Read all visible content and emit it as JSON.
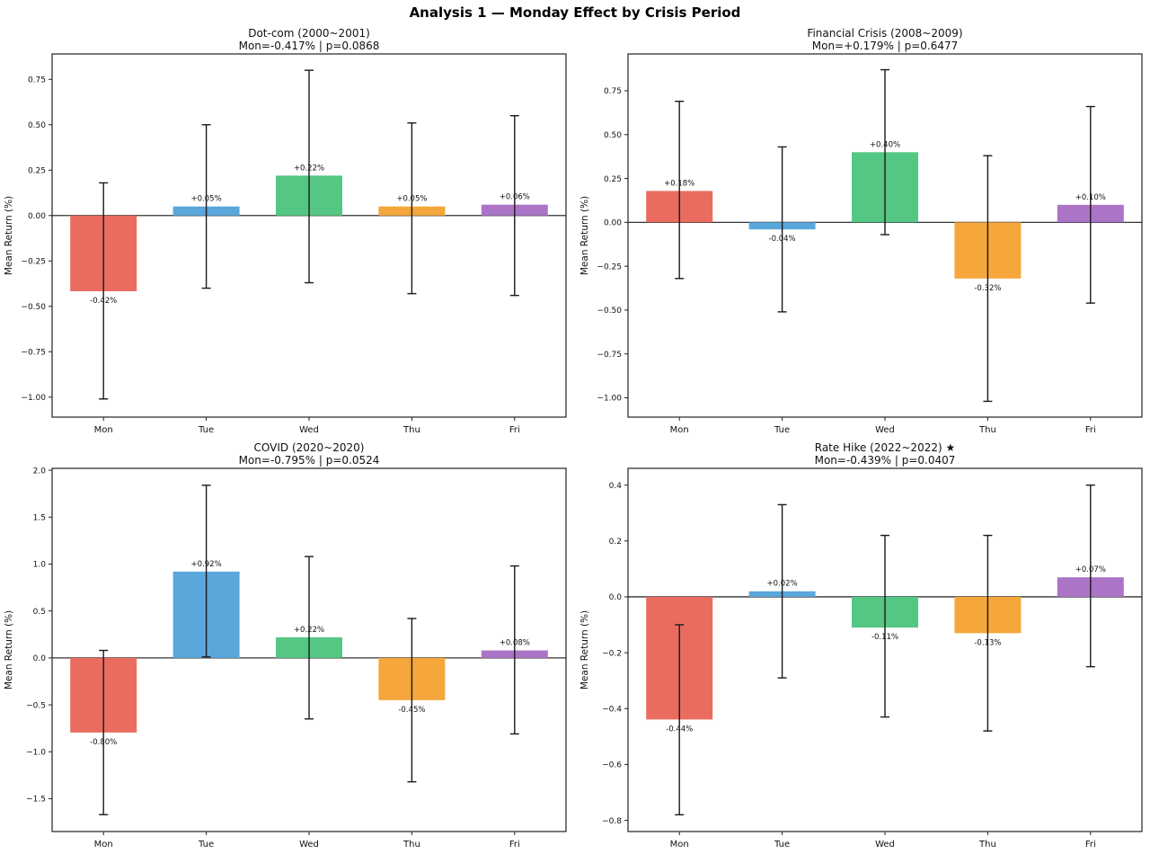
{
  "figure": {
    "title": "Analysis 1 — Monday Effect by Crisis Period",
    "background": "#ffffff",
    "bar_palette": [
      "#e96c5f",
      "#5aa7dc",
      "#55c785",
      "#f5a73b",
      "#ac74c6"
    ],
    "error_bar_color": "#1a1a1a",
    "axis_color": "#222222",
    "zero_line_color": "#333333"
  },
  "chart_data": [
    {
      "type": "bar",
      "position": "top-left",
      "title": "Dot-com (2000~2001)",
      "subtitle": "Mon=-0.417% | p=0.0868",
      "ylabel": "Mean Return (%)",
      "categories": [
        "Mon",
        "Tue",
        "Wed",
        "Thu",
        "Fri"
      ],
      "values": [
        -0.417,
        0.05,
        0.22,
        0.05,
        0.06
      ],
      "bar_labels": [
        "-0.42%",
        "+0.05%",
        "+0.22%",
        "+0.05%",
        "+0.06%"
      ],
      "error_high": [
        0.18,
        0.5,
        0.8,
        0.51,
        0.55
      ],
      "error_low": [
        -1.01,
        -0.4,
        -0.37,
        -0.43,
        -0.44
      ],
      "ylim": [
        -1.11,
        0.89
      ],
      "yticks": [
        0.75,
        0.5,
        0.25,
        0.0,
        -0.25,
        -0.5,
        -0.75,
        -1.0
      ],
      "ytick_labels": [
        "0.75",
        "0.50",
        "0.25",
        "0.00",
        "−0.25",
        "−0.50",
        "−0.75",
        "−1.00"
      ],
      "grid": false,
      "legend": null
    },
    {
      "type": "bar",
      "position": "top-right",
      "title": "Financial Crisis (2008~2009)",
      "subtitle": "Mon=+0.179% | p=0.6477",
      "ylabel": "Mean Return (%)",
      "categories": [
        "Mon",
        "Tue",
        "Wed",
        "Thu",
        "Fri"
      ],
      "values": [
        0.179,
        -0.04,
        0.4,
        -0.32,
        0.1
      ],
      "bar_labels": [
        "+0.18%",
        "-0.04%",
        "+0.40%",
        "-0.32%",
        "+0.10%"
      ],
      "error_high": [
        0.69,
        0.43,
        0.87,
        0.38,
        0.66
      ],
      "error_low": [
        -0.32,
        -0.51,
        -0.07,
        -1.02,
        -0.46
      ],
      "ylim": [
        -1.11,
        0.96
      ],
      "yticks": [
        0.75,
        0.5,
        0.25,
        0.0,
        -0.25,
        -0.5,
        -0.75,
        -1.0
      ],
      "ytick_labels": [
        "0.75",
        "0.50",
        "0.25",
        "0.00",
        "−0.25",
        "−0.50",
        "−0.75",
        "−1.00"
      ],
      "grid": false,
      "legend": null
    },
    {
      "type": "bar",
      "position": "bottom-left",
      "title": "COVID (2020~2020)",
      "subtitle": "Mon=-0.795% | p=0.0524",
      "ylabel": "Mean Return (%)",
      "categories": [
        "Mon",
        "Tue",
        "Wed",
        "Thu",
        "Fri"
      ],
      "values": [
        -0.795,
        0.92,
        0.22,
        -0.45,
        0.08
      ],
      "bar_labels": [
        "-0.80%",
        "+0.92%",
        "+0.22%",
        "-0.45%",
        "+0.08%"
      ],
      "error_high": [
        0.08,
        1.84,
        1.08,
        0.42,
        0.98
      ],
      "error_low": [
        -1.67,
        0.01,
        -0.65,
        -1.32,
        -0.81
      ],
      "ylim": [
        -1.85,
        2.02
      ],
      "yticks": [
        2.0,
        1.5,
        1.0,
        0.5,
        0.0,
        -0.5,
        -1.0,
        -1.5
      ],
      "ytick_labels": [
        "2.0",
        "1.5",
        "1.0",
        "0.5",
        "0.0",
        "−0.5",
        "−1.0",
        "−1.5"
      ],
      "grid": false,
      "legend": null
    },
    {
      "type": "bar",
      "position": "bottom-right",
      "title": "Rate Hike (2022~2022) ★",
      "subtitle": "Mon=-0.439% | p=0.0407",
      "ylabel": "Mean Return (%)",
      "categories": [
        "Mon",
        "Tue",
        "Wed",
        "Thu",
        "Fri"
      ],
      "values": [
        -0.439,
        0.02,
        -0.11,
        -0.13,
        0.07
      ],
      "bar_labels": [
        "-0.44%",
        "+0.02%",
        "-0.11%",
        "-0.13%",
        "+0.07%"
      ],
      "error_high": [
        -0.1,
        0.33,
        0.22,
        0.22,
        0.4
      ],
      "error_low": [
        -0.78,
        -0.29,
        -0.43,
        -0.48,
        -0.25
      ],
      "ylim": [
        -0.84,
        0.46
      ],
      "yticks": [
        0.4,
        0.2,
        0.0,
        -0.2,
        -0.4,
        -0.6,
        -0.8
      ],
      "ytick_labels": [
        "0.4",
        "0.2",
        "0.0",
        "−0.2",
        "−0.4",
        "−0.6",
        "−0.8"
      ],
      "grid": false,
      "legend": null
    }
  ]
}
